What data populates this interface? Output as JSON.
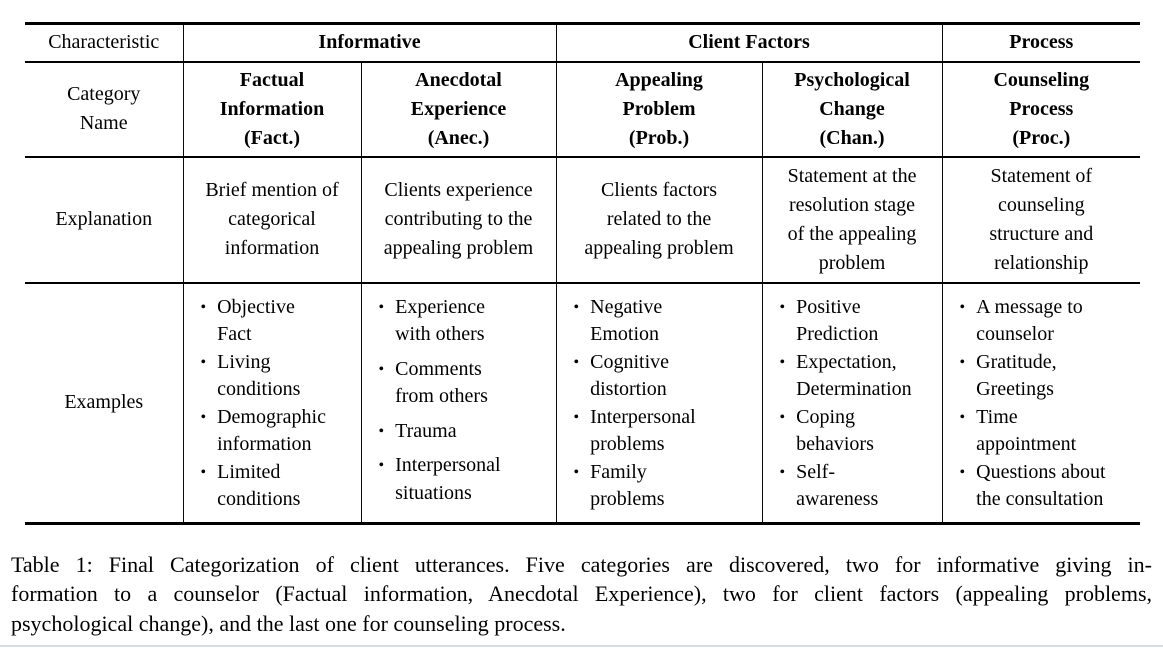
{
  "page": {
    "background": "#ffffff",
    "text_color": "#000000",
    "rule_color": "#000000",
    "bottom_strip_color": "#d9dce1"
  },
  "table": {
    "bullet": "•",
    "rows": {
      "characteristic": {
        "label": "Characteristic",
        "groups": [
          {
            "label": "Informative",
            "span": 2
          },
          {
            "label": "Client Factors",
            "span": 2
          },
          {
            "label": "Process",
            "span": 1
          }
        ]
      },
      "category": {
        "label": "Category\nName",
        "cells": [
          "Factual\nInformation\n(Fact.)",
          "Anecdotal\nExperience\n(Anec.)",
          "Appealing\nProblem\n(Prob.)",
          "Psychological\nChange\n(Chan.)",
          "Counseling\nProcess\n(Proc.)"
        ]
      },
      "explanation": {
        "label": "Explanation",
        "cells": [
          "Brief mention of\ncategorical\ninformation",
          "Clients experience\ncontributing to the\nappealing problem",
          "Clients factors\nrelated to the\nappealing problem",
          "Statement at the\nresolution stage\nof the appealing\nproblem",
          "Statement of\ncounseling\nstructure and\nrelationship"
        ]
      },
      "examples": {
        "label": "Examples",
        "cells": [
          [
            "Objective\nFact",
            "Living\nconditions",
            "Demographic\ninformation",
            "Limited\nconditions"
          ],
          [
            "Experience\nwith others",
            "Comments\nfrom others",
            "Trauma",
            "Interpersonal\nsituations"
          ],
          [
            "Negative\nEmotion",
            "Cognitive\ndistortion",
            "Interpersonal\nproblems",
            "Family\nproblems"
          ],
          [
            "Positive\nPrediction",
            "Expectation,\nDetermination",
            "Coping\nbehaviors",
            "Self-\nawareness"
          ],
          [
            "A message to\ncounselor",
            "Gratitude,\nGreetings",
            "Time\nappointment",
            "Questions about\nthe consultation"
          ]
        ]
      }
    }
  },
  "caption": {
    "lines": [
      "Table 1: Final Categorization of client utterances. Five categories are discovered, two for informative giving in-",
      "formation to a counselor (Factual information, Anecdotal Experience), two for client factors (appealing problems,",
      "psychological change), and the last one for counseling process."
    ]
  }
}
